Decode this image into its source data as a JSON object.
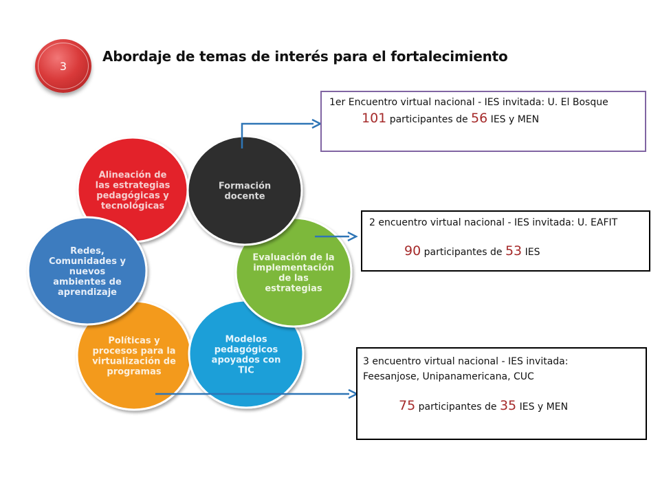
{
  "slide": {
    "number": "3",
    "title": "Abordaje de temas de interés para el fortalecimiento"
  },
  "cycle": [
    {
      "id": "alineacion",
      "color": "#e3232b",
      "lines": [
        "Alineación de",
        "las estrategias",
        "pedagógicas y",
        "tecnológicas"
      ],
      "text_color": "#f6cfd0"
    },
    {
      "id": "formacion",
      "color": "#2f2f2f",
      "lines": [
        "Formación",
        "docente"
      ],
      "text_color": "#d9d9d9"
    },
    {
      "id": "evaluacion",
      "color": "#7db83a",
      "lines": [
        "Evaluación de la",
        "implementación",
        "de las",
        "estrategias"
      ],
      "text_color": "#eef6e2"
    },
    {
      "id": "modelos",
      "color": "#1e9fd8",
      "lines": [
        "Modelos",
        "pedagógicos",
        "apoyados con",
        "TIC"
      ],
      "text_color": "#e3f4fc"
    },
    {
      "id": "politicas",
      "color": "#f39a1e",
      "lines": [
        "Políticas y",
        "procesos para la",
        "virtualización de",
        "programas"
      ],
      "text_color": "#fdf0dc"
    },
    {
      "id": "redes",
      "color": "#3d7bbf",
      "lines": [
        "Redes,",
        "Comunidades y",
        "nuevos",
        "ambientes de",
        "aprendizaje"
      ],
      "text_color": "#e6eef8"
    }
  ],
  "encuentros": [
    {
      "line1": "1er Encuentro virtual nacional - IES invitada: U. El Bosque",
      "participants": "101",
      "mid": " participantes de ",
      "ies": "56",
      "suffix": " IES y MEN"
    },
    {
      "line1": "2 encuentro virtual nacional - IES invitada: U. EAFIT",
      "participants": "90",
      "mid": " participantes de ",
      "ies": "53",
      "suffix": " IES"
    },
    {
      "line1": "3 encuentro virtual nacional - IES invitada:",
      "line1b": "Feesanjose, Unipanamericana, CUC",
      "participants": "75",
      "mid": " participantes de ",
      "ies": "35",
      "suffix": " IES y MEN"
    }
  ],
  "colors": {
    "arrow": "#2e75b6",
    "box1_border": "#8064a2",
    "number_accent": "#a52a2a"
  }
}
